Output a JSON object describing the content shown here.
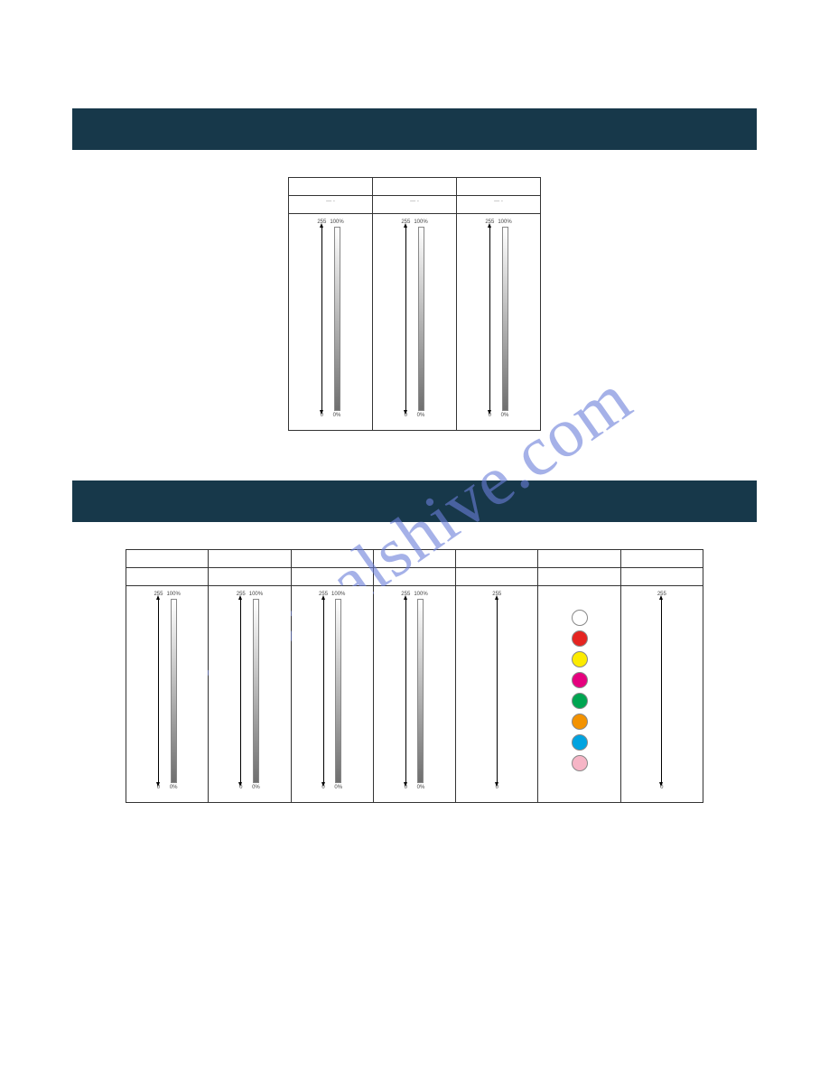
{
  "watermark_text": "manualshive.com",
  "watermark_color": "#6b7ed9",
  "header_bg": "#17384a",
  "header_fg": "#ffffff",
  "cell_border": "#333333",
  "page_bg": "#ffffff",
  "gradient_from": "#ffffff",
  "gradient_to": "#6f6f6f",
  "section1": {
    "title": "",
    "columns": [
      {
        "name": "",
        "sub": "— -",
        "top_left": "255",
        "top_right": "100%",
        "bot_left": "0",
        "bot_right": "0%",
        "show_gradient": true
      },
      {
        "name": "",
        "sub": "— -",
        "top_left": "255",
        "top_right": "100%",
        "bot_left": "0",
        "bot_right": "0%",
        "show_gradient": true
      },
      {
        "name": "",
        "sub": "— -",
        "top_left": "255",
        "top_right": "100%",
        "bot_left": "0",
        "bot_right": "0%",
        "show_gradient": true
      }
    ]
  },
  "section2": {
    "title": "",
    "columns": [
      {
        "name": "",
        "sub": "",
        "top_left": "255",
        "top_right": "100%",
        "bot_left": "0",
        "bot_right": "0%",
        "show_gradient": true,
        "show_arrow": true
      },
      {
        "name": "",
        "sub": "",
        "top_left": "255",
        "top_right": "100%",
        "bot_left": "0",
        "bot_right": "0%",
        "show_gradient": true,
        "show_arrow": true
      },
      {
        "name": "",
        "sub": "",
        "top_left": "255",
        "top_right": "100%",
        "bot_left": "0",
        "bot_right": "0%",
        "show_gradient": true,
        "show_arrow": true
      },
      {
        "name": "",
        "sub": "",
        "top_left": "255",
        "top_right": "100%",
        "bot_left": "0",
        "bot_right": "0%",
        "show_gradient": true,
        "show_arrow": true
      },
      {
        "name": "",
        "sub": "",
        "top_left": "255",
        "top_right": "",
        "bot_left": "0",
        "bot_right": "",
        "show_gradient": false,
        "show_arrow": true
      },
      {
        "name": "",
        "sub": "",
        "colors": [
          "#ffffff",
          "#e52421",
          "#fceb00",
          "#e5007e",
          "#00a551",
          "#f39200",
          "#00a3e0",
          "#f6b5c6"
        ]
      },
      {
        "name": "",
        "sub": "",
        "top_left": "255",
        "top_right": "",
        "bot_left": "0",
        "bot_right": "",
        "show_gradient": false,
        "show_arrow": true
      }
    ]
  }
}
